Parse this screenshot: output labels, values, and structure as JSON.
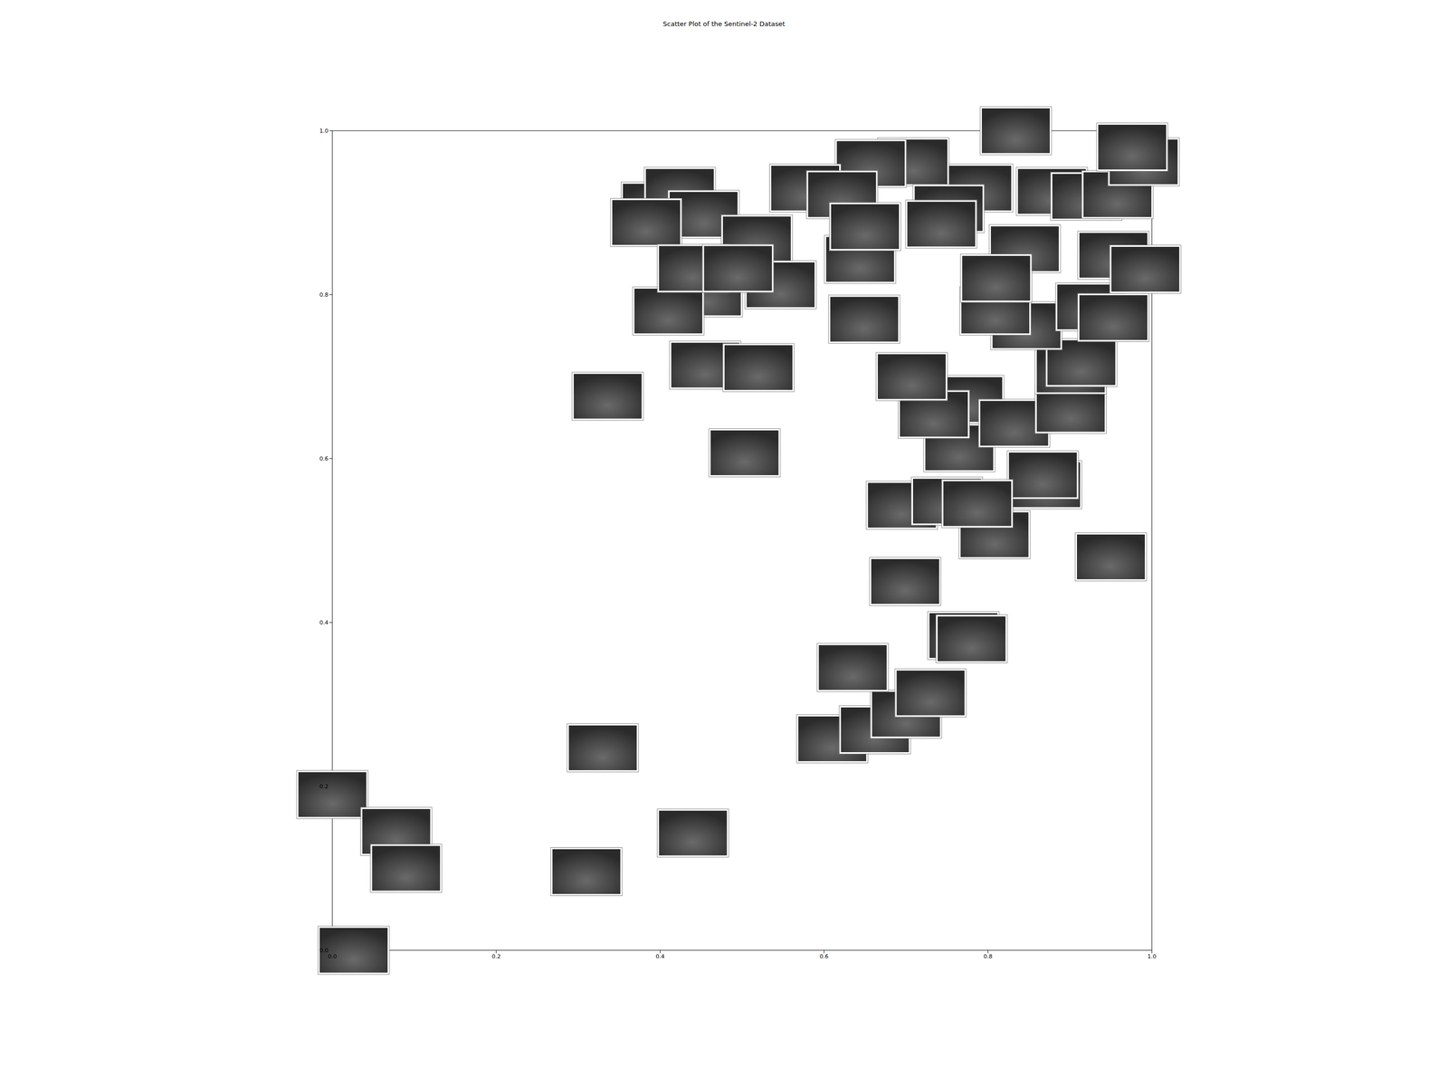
{
  "chart_data": {
    "type": "scatter",
    "title": "Scatter Plot of the Sentinel-2 Dataset",
    "marker": "square",
    "color": "#2a2a2a",
    "xlim": [
      0,
      1
    ],
    "ylim": [
      0,
      1
    ],
    "xticks": [
      {
        "value": 0,
        "label": "0.0"
      },
      {
        "value": 0.2,
        "label": "0.2"
      },
      {
        "value": 0.4,
        "label": "0.4"
      },
      {
        "value": 0.6,
        "label": "0.6"
      },
      {
        "value": 0.8,
        "label": "0.8"
      },
      {
        "value": 1,
        "label": "1.0"
      }
    ],
    "yticks": [
      {
        "value": 0,
        "label": "0.0"
      },
      {
        "value": 0.2,
        "label": "0.2"
      },
      {
        "value": 0.4,
        "label": "0.4"
      },
      {
        "value": 0.6,
        "label": "0.6"
      },
      {
        "value": 0.8,
        "label": "0.8"
      },
      {
        "value": 1,
        "label": "1.0"
      }
    ],
    "x": [
      0.026,
      0.0,
      0.078,
      0.09,
      0.31,
      0.33,
      0.44,
      0.61,
      0.662,
      0.7,
      0.73,
      0.635,
      0.77,
      0.78,
      0.699,
      0.95,
      0.695,
      0.75,
      0.808,
      0.871,
      0.867,
      0.787,
      0.765,
      0.776,
      0.832,
      0.734,
      0.707,
      0.901,
      0.901,
      0.914,
      0.847,
      0.926,
      0.953,
      0.809,
      0.845,
      0.953,
      0.992,
      0.878,
      0.92,
      0.958,
      0.99,
      0.834,
      0.787,
      0.976,
      0.709,
      0.657,
      0.752,
      0.644,
      0.649,
      0.577,
      0.622,
      0.65,
      0.396,
      0.424,
      0.453,
      0.383,
      0.518,
      0.547,
      0.457,
      0.41,
      0.44,
      0.495,
      0.455,
      0.52,
      0.336,
      0.503,
      0.81,
      0.743
    ],
    "values": [
      0.0,
      0.19,
      0.145,
      0.1,
      0.096,
      0.247,
      0.143,
      0.258,
      0.269,
      0.288,
      0.314,
      0.345,
      0.384,
      0.38,
      0.45,
      0.48,
      0.543,
      0.548,
      0.507,
      0.568,
      0.58,
      0.545,
      0.613,
      0.672,
      0.643,
      0.654,
      0.7,
      0.66,
      0.708,
      0.717,
      0.762,
      0.785,
      0.772,
      0.78,
      0.856,
      0.848,
      0.831,
      0.926,
      0.92,
      0.922,
      0.962,
      1.0,
      0.93,
      0.98,
      0.962,
      0.96,
      0.905,
      0.843,
      0.77,
      0.93,
      0.922,
      0.883,
      0.908,
      0.926,
      0.898,
      0.888,
      0.868,
      0.812,
      0.802,
      0.78,
      0.832,
      0.832,
      0.714,
      0.711,
      0.676,
      0.607,
      0.82,
      0.886
    ]
  }
}
